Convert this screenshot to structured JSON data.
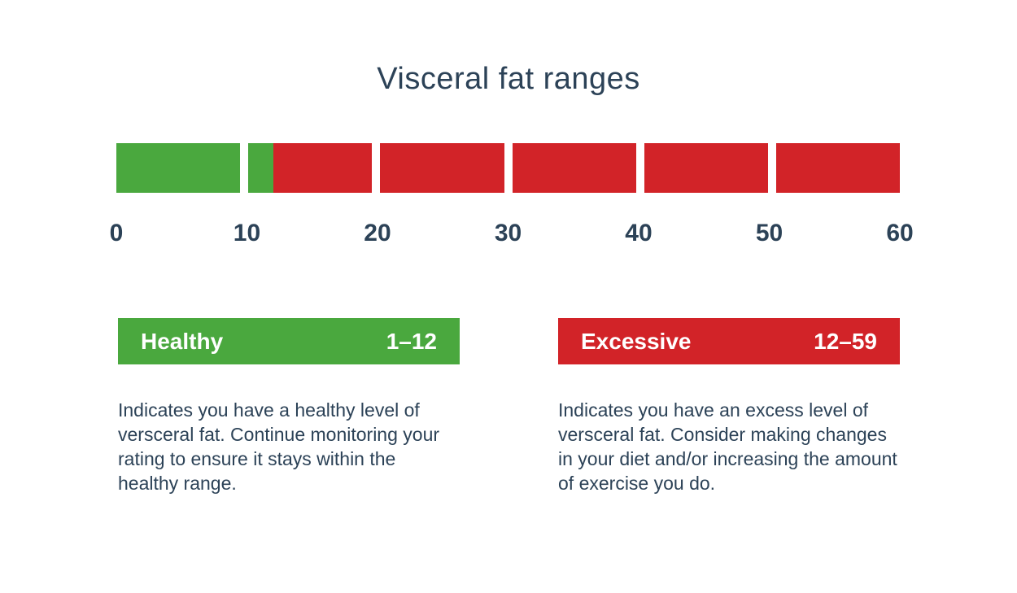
{
  "title": "Visceral fat ranges",
  "colors": {
    "green": "#4aa83e",
    "red": "#d22328",
    "navy": "#2c4257",
    "background": "#ffffff"
  },
  "chart_data": {
    "type": "bar",
    "title": "Visceral fat ranges",
    "xlabel": "",
    "ylabel": "",
    "axis": {
      "min": 0,
      "max": 60,
      "tick_values": [
        0,
        10,
        20,
        30,
        40,
        50,
        60
      ],
      "tick_labels": [
        "0",
        "10",
        "20",
        "30",
        "40",
        "50",
        "60"
      ]
    },
    "segment_size": 10,
    "segment_count": 6,
    "ranges": [
      {
        "name": "Healthy",
        "bar_from": 0,
        "bar_to": 12,
        "color": "#4aa83e"
      },
      {
        "name": "Excessive",
        "bar_from": 12,
        "bar_to": 60,
        "color": "#d22328"
      }
    ]
  },
  "legend": [
    {
      "label": "Healthy",
      "range": "1–12",
      "color": "#4aa83e",
      "description": "Indicates you have a healthy level of versceral fat. Continue monitoring your rating to ensure it stays within the healthy range."
    },
    {
      "label": "Excessive",
      "range": "12–59",
      "color": "#d22328",
      "description": "Indicates you have an excess level of versceral fat. Consider making changes in your diet and/or increasing the amount of exercise you do."
    }
  ]
}
